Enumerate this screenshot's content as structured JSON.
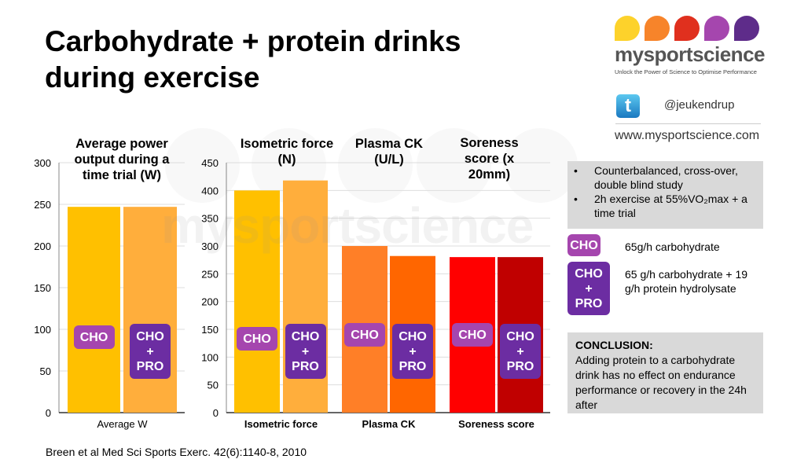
{
  "title": "Carbohydrate + protein drinks during exercise",
  "watermark": "mysportscience",
  "logo": {
    "brand": "mysportscience",
    "tagline": "Unlock the Power of Science to Optimise Performance",
    "drop_colors": [
      "#FDD22B",
      "#F7842A",
      "#E0301E",
      "#A546AE",
      "#5E2C8A"
    ]
  },
  "twitter": {
    "icon": "twitter-icon",
    "handle": "@jeukendrup"
  },
  "website": "www.mysportscience.com",
  "study_info": [
    "Counterbalanced, cross-over, double blind study",
    "2h exercise at 55%VO₂max + a time trial"
  ],
  "legend": [
    {
      "badge": "CHO",
      "text": "65g/h carbohydrate",
      "color": "#A546AE"
    },
    {
      "badge": "CHO + PRO",
      "text": "65 g/h carbohydrate + 19 g/h protein hydrolysate",
      "color": "#6C2DA2"
    }
  ],
  "conclusion": {
    "heading": "CONCLUSION:",
    "text": "Adding protein to a carbohydrate drink has no effect on endurance performance or recovery in the 24h after"
  },
  "citation": "Breen et al Med Sci Sports Exerc. 42(6):1140-8, 2010",
  "badges": {
    "cho": "CHO",
    "plus": "+",
    "pro": "PRO"
  },
  "chart_data": [
    {
      "type": "bar",
      "title": "Average power output during a time trial (W)",
      "categories": [
        "Average W"
      ],
      "ylim": [
        0,
        300
      ],
      "yticks": [
        0,
        50,
        100,
        150,
        200,
        250,
        300
      ],
      "grid": true,
      "series": [
        {
          "name": "CHO",
          "values": [
            247
          ],
          "colors": [
            "#FFC000"
          ]
        },
        {
          "name": "CHO + PRO",
          "values": [
            247
          ],
          "colors": [
            "#FFAE3C"
          ]
        }
      ]
    },
    {
      "type": "bar",
      "panel_titles": [
        "Isometric force (N)",
        "Plasma CK (U/L)",
        "Soreness score (x 20mm)"
      ],
      "categories": [
        "Isometric force",
        "Plasma CK",
        "Soreness score"
      ],
      "ylim": [
        0,
        450
      ],
      "yticks": [
        0,
        50,
        100,
        150,
        200,
        250,
        300,
        350,
        400,
        450
      ],
      "grid": true,
      "series": [
        {
          "name": "CHO",
          "values": [
            400,
            300,
            280
          ],
          "colors": [
            "#FFC000",
            "#FF7F27",
            "#FF0000"
          ]
        },
        {
          "name": "CHO + PRO",
          "values": [
            418,
            282,
            280
          ],
          "colors": [
            "#FFAE3C",
            "#FF6600",
            "#C00000"
          ]
        }
      ]
    }
  ]
}
